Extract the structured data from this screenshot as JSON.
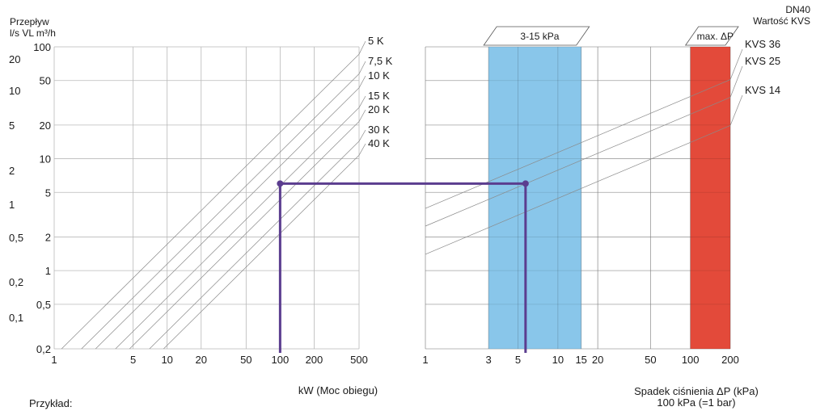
{
  "chart_data": {
    "type": "line",
    "header": {
      "title_line1": "Przepływ",
      "title_line2": "l/s  VL m³/h",
      "right_line1": "DN40",
      "right_line2": "Wartość KVS"
    },
    "left": {
      "xlabel": "kW (Moc obiegu)",
      "xscale": "log",
      "xlim": [
        1,
        500
      ],
      "xticks": [
        "1",
        "5",
        "10",
        "20",
        "50",
        "100",
        "200",
        "500"
      ],
      "ylim_m3h": [
        0.2,
        100
      ],
      "yticks_m3h": [
        "100",
        "50",
        "20",
        "10",
        "5",
        "2",
        "1",
        "0,5",
        "0,2"
      ],
      "yticks_ls": [
        "20",
        "10",
        "5",
        "2",
        "1",
        "0,5",
        "0,2",
        "0,1"
      ],
      "series": [
        {
          "name": "5 K"
        },
        {
          "name": "7,5 K"
        },
        {
          "name": "10 K"
        },
        {
          "name": "15 K"
        },
        {
          "name": "20 K"
        },
        {
          "name": "30 K"
        },
        {
          "name": "40 K"
        }
      ]
    },
    "right": {
      "xlabel_line1": "Spadek ciśnienia ΔP (kPa)",
      "xlabel_line2": "100 kPa (=1 bar)",
      "xscale": "log",
      "xlim": [
        1,
        200
      ],
      "xticks": [
        "1",
        "3",
        "5",
        "10",
        "15",
        "20",
        "50",
        "100",
        "200"
      ],
      "bands": [
        {
          "label": "3-15 kPa",
          "from": 3,
          "to": 15,
          "color": "#89c6ea"
        },
        {
          "label": "max. ΔP",
          "from": 100,
          "to": 200,
          "color": "#e34a3a"
        }
      ],
      "series": [
        {
          "name": "KVS 36",
          "kvs": 36
        },
        {
          "name": "KVS 25",
          "kvs": 25
        },
        {
          "name": "KVS 14",
          "kvs": 14
        }
      ]
    },
    "example": {
      "label": "Przykład:",
      "power_kw": 100,
      "flow_m3h": 6,
      "pressure_kpa": 5.7,
      "color": "#5b3d8f"
    }
  }
}
